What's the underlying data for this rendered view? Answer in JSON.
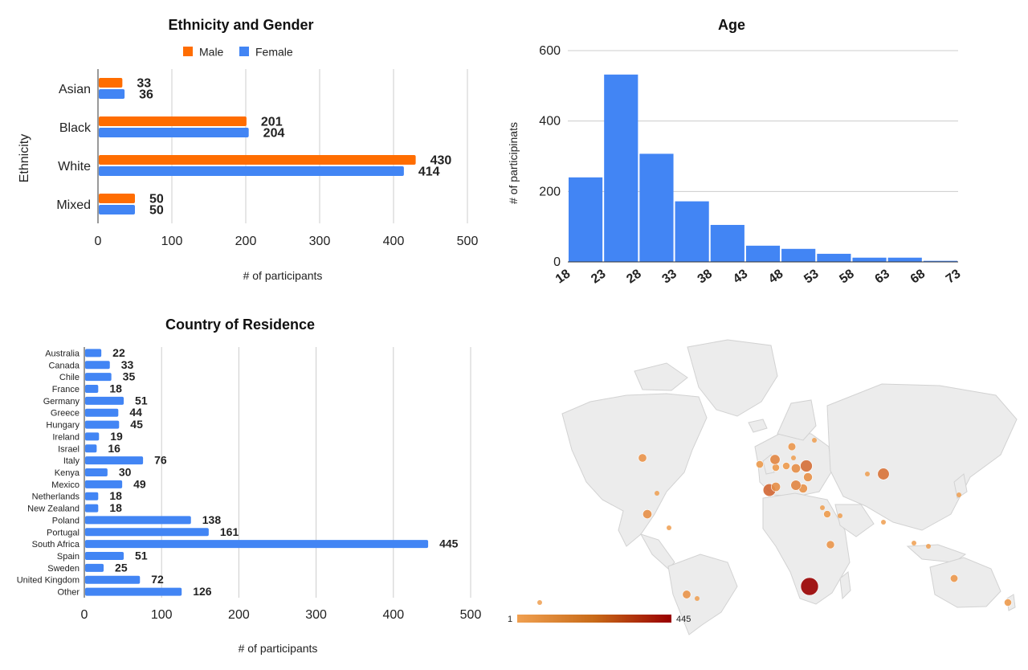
{
  "chart_data": [
    {
      "id": "ethnicity",
      "type": "bar",
      "orientation": "horizontal",
      "title": "Ethnicity and Gender",
      "xlabel": "# of participants",
      "ylabel": "Ethnicity",
      "categories": [
        "Asian",
        "Black",
        "White",
        "Mixed"
      ],
      "series": [
        {
          "name": "Male",
          "color": "#ff6d01",
          "values": [
            33,
            201,
            430,
            50
          ]
        },
        {
          "name": "Female",
          "color": "#4285f4",
          "values": [
            36,
            204,
            414,
            50
          ]
        }
      ],
      "xlim": [
        0,
        500
      ],
      "xticks": [
        0,
        100,
        200,
        300,
        400,
        500
      ],
      "legend": "top"
    },
    {
      "id": "age",
      "type": "bar",
      "title": "Age",
      "xlabel": "",
      "ylabel": "# of participinats",
      "bin_edges": [
        18,
        23,
        28,
        33,
        38,
        43,
        48,
        53,
        58,
        63,
        68,
        73
      ],
      "values": [
        240,
        532,
        307,
        172,
        105,
        46,
        37,
        23,
        12,
        12,
        3
      ],
      "color": "#4285f4",
      "ylim": [
        0,
        600
      ],
      "yticks": [
        0,
        200,
        400,
        600
      ]
    },
    {
      "id": "country",
      "type": "bar",
      "orientation": "horizontal",
      "title": "Country of Residence",
      "xlabel": "# of participants",
      "categories": [
        "Australia",
        "Canada",
        "Chile",
        "France",
        "Germany",
        "Greece",
        "Hungary",
        "Ireland",
        "Israel",
        "Italy",
        "Kenya",
        "Mexico",
        "Netherlands",
        "New Zealand",
        "Poland",
        "Portugal",
        "South Africa",
        "Spain",
        "Sweden",
        "United Kingdom",
        "Other"
      ],
      "values": [
        22,
        33,
        35,
        18,
        51,
        44,
        45,
        19,
        16,
        76,
        30,
        49,
        18,
        18,
        138,
        161,
        445,
        51,
        25,
        72,
        126
      ],
      "color": "#4285f4",
      "xlim": [
        0,
        500
      ],
      "xticks": [
        0,
        100,
        200,
        300,
        400,
        500
      ]
    },
    {
      "id": "map",
      "type": "geo-bubble",
      "color_scale": {
        "min": 1,
        "max": 445,
        "min_color": "#f0a050",
        "max_color": "#990000"
      }
    }
  ]
}
